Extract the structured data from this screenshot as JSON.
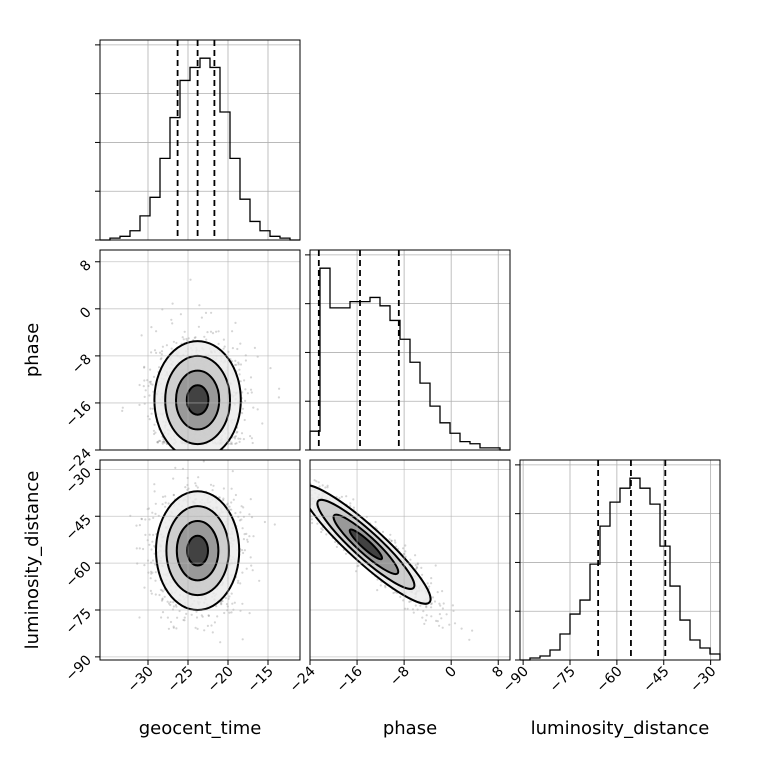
{
  "chart_data": {
    "type": "corner",
    "parameters": [
      "geocent_time",
      "phase",
      "luminosity_distance"
    ],
    "axis_labels": {
      "x": [
        "geocent_time",
        "phase",
        "luminosity_distance"
      ],
      "y": [
        "phase",
        "luminosity_distance"
      ]
    },
    "ranges": {
      "geocent_time": [
        -36,
        -11
      ],
      "phase": [
        -24,
        10
      ],
      "luminosity_distance": [
        -91,
        -27
      ]
    },
    "ticks": {
      "geocent_time": [
        -30,
        -25,
        -20,
        -15
      ],
      "phase": [
        -24,
        -16,
        -8,
        0,
        8
      ],
      "luminosity_distance": [
        -90,
        -75,
        -60,
        -45,
        -30
      ]
    },
    "grid": true,
    "quantile_lines": {
      "geocent_time": [
        -26.3,
        -23.8,
        -21.7
      ],
      "phase": [
        -22.5,
        -15.5,
        -8.9
      ],
      "luminosity_distance": [
        -66.0,
        -55.5,
        -44.5
      ]
    },
    "histograms": {
      "geocent_time": {
        "edges": [
          -36.0,
          -34.75,
          -33.5,
          -32.25,
          -31.0,
          -29.75,
          -28.5,
          -27.25,
          -26.0,
          -24.75,
          -23.5,
          -22.25,
          -21.0,
          -19.75,
          -18.5,
          -17.25,
          -16.0,
          -14.75,
          -13.5,
          -12.25,
          -11.0
        ],
        "counts": [
          0,
          1,
          2,
          5,
          13,
          23,
          44,
          66,
          86,
          93,
          98,
          93,
          69,
          44,
          22,
          10,
          5,
          2,
          1,
          0
        ]
      },
      "phase": {
        "edges": [
          -24.0,
          -22.3,
          -20.6,
          -18.9,
          -17.2,
          -15.5,
          -13.8,
          -12.1,
          -10.4,
          -8.7,
          -7.0,
          -5.3,
          -3.6,
          -1.9,
          -0.2,
          1.5,
          3.2,
          4.9,
          6.6,
          8.3,
          10.0
        ],
        "counts": [
          9,
          87,
          68,
          68,
          71,
          71,
          73,
          69,
          62,
          53,
          42,
          32,
          21,
          13,
          8,
          4,
          3,
          1,
          1,
          0
        ]
      },
      "luminosity_distance": {
        "edges": [
          -91.0,
          -87.8,
          -84.6,
          -81.4,
          -78.2,
          -75.0,
          -71.8,
          -68.6,
          -65.4,
          -62.2,
          -59.0,
          -55.8,
          -52.6,
          -49.4,
          -46.2,
          -43.0,
          -39.8,
          -36.6,
          -33.4,
          -30.2,
          -27.0
        ],
        "counts": [
          0,
          1,
          2,
          5,
          13,
          23,
          30,
          48,
          67,
          79,
          86,
          91,
          86,
          78,
          57,
          37,
          20,
          10,
          6,
          3
        ]
      }
    },
    "pairs": [
      {
        "x": "geocent_time",
        "y": "phase",
        "center": [
          -23.8,
          -15.5
        ],
        "spread": [
          2.7,
          5.0
        ],
        "correlation": 0.0,
        "bounded_low_y": -23
      },
      {
        "x": "geocent_time",
        "y": "luminosity_distance",
        "center": [
          -23.8,
          -56.0
        ],
        "spread": [
          2.6,
          9.5
        ],
        "correlation": 0.05
      },
      {
        "x": "phase",
        "y": "luminosity_distance",
        "center": [
          -14.5,
          -54.0
        ],
        "spread": [
          5.5,
          9.5
        ],
        "correlation": -0.92
      }
    ]
  }
}
